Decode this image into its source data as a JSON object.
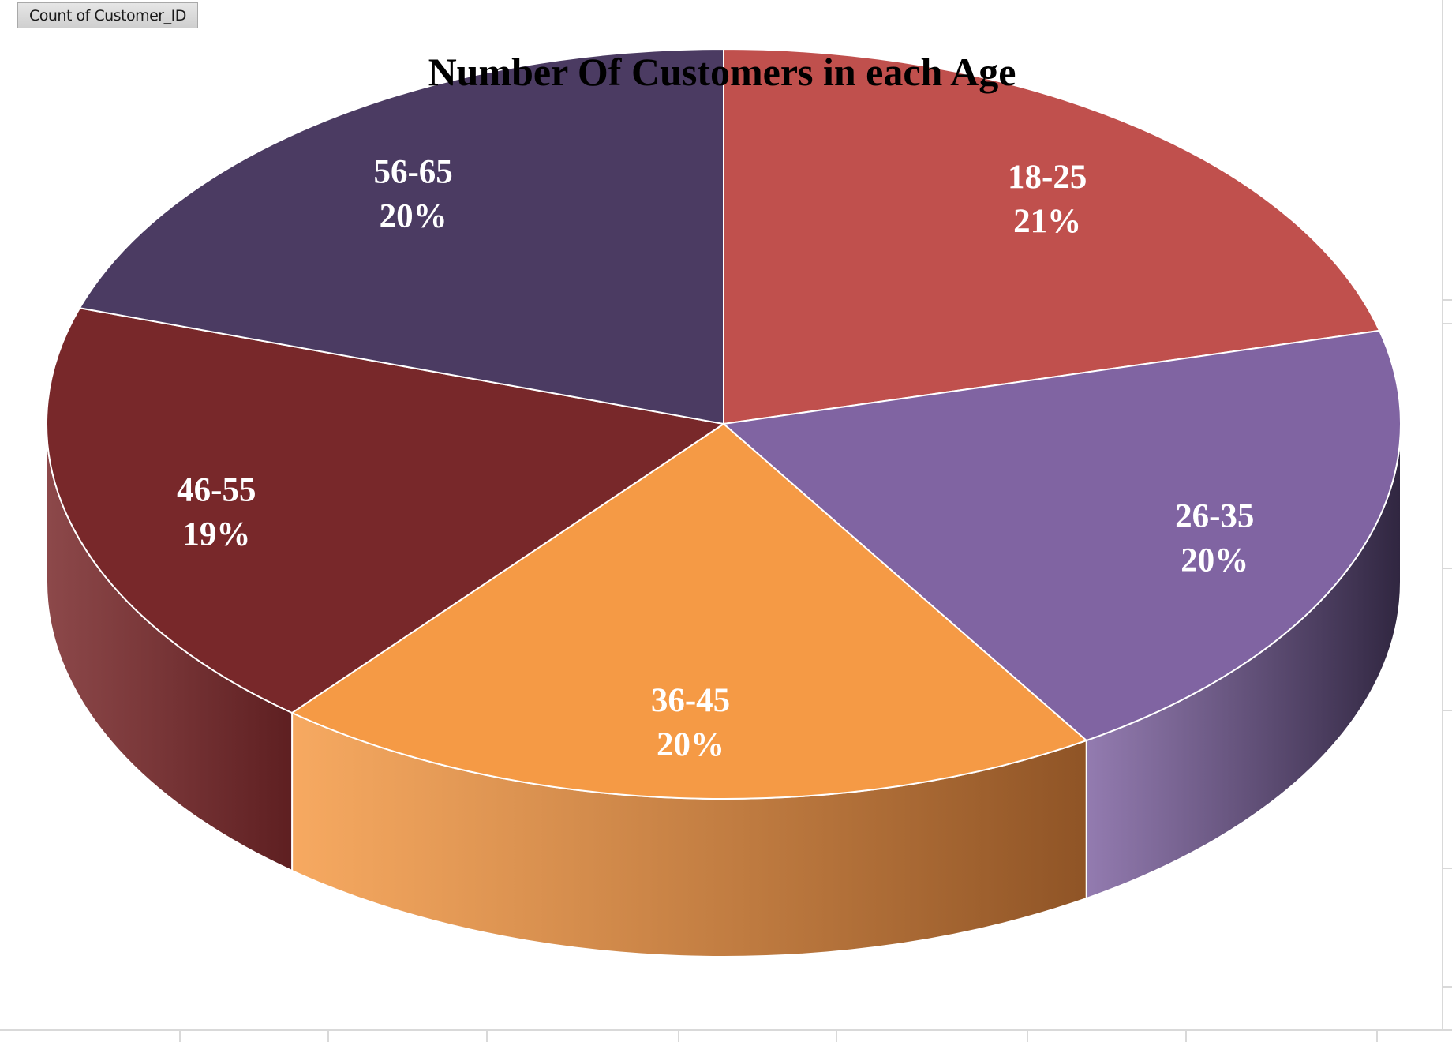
{
  "pivot_field_button": "Count of Customer_ID",
  "chart_data": {
    "type": "pie",
    "style": "3d",
    "title": "Number Of Customers in each Age",
    "categories": [
      "18-25",
      "26-35",
      "36-45",
      "46-55",
      "56-65"
    ],
    "values": [
      21,
      20,
      20,
      19,
      20
    ],
    "percent_labels": [
      "21%",
      "20%",
      "20%",
      "19%",
      "20%"
    ],
    "colors": [
      "#C0504D",
      "#8064A2",
      "#F59A45",
      "#78282A",
      "#4B3B62"
    ],
    "side_colors": [
      "#7C2C2A",
      "#302640",
      "#8F5426",
      "#5E1F21",
      "#2C2240"
    ],
    "legend": "none",
    "data_labels": "category and percentage"
  }
}
